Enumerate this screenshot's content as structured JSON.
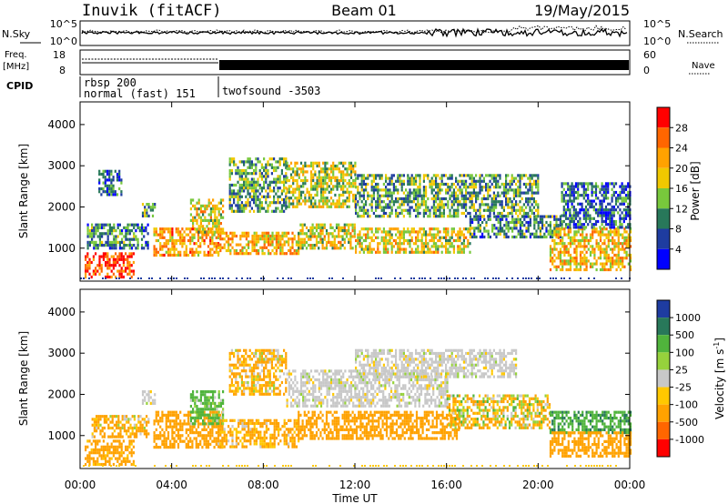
{
  "header": {
    "station": "Inuvik (fitACF)",
    "beam": "Beam 01",
    "date": "19/May/2015"
  },
  "top_panels": {
    "nsky_label": "N.Sky",
    "nsearch_label": "N.Search",
    "freq_label_1": "Freq.",
    "freq_label_2": "[MHz]",
    "nave_label": "Nave",
    "cpid_label": "CPID",
    "nsky_ticks": [
      "10^5",
      "10^0"
    ],
    "nsearch_ticks": [
      "10^5",
      "10^0"
    ],
    "freq_ticks": [
      "18",
      "8"
    ],
    "nave_ticks": [
      "60",
      "0"
    ],
    "cpid_entries": [
      {
        "line1": "rbsp 200",
        "line2": "normal (fast) 151"
      },
      {
        "line1": "twofsound -3503",
        "line2": ""
      }
    ]
  },
  "colorbars": {
    "power": {
      "label": "Power [dB]",
      "ticks": [
        "28",
        "24",
        "20",
        "16",
        "12",
        "8",
        "4"
      ],
      "colors": [
        "#ff0000",
        "#ff6600",
        "#ffa200",
        "#f0c800",
        "#78c83c",
        "#28785a",
        "#1e3ca0",
        "#0000ff"
      ]
    },
    "velocity": {
      "label": "Velocity [m s",
      "label_sup": "-1",
      "label_end": "]",
      "ticks": [
        "1000",
        "500",
        "100",
        "25",
        "-25",
        "-100",
        "-500",
        "-1000"
      ],
      "colors": [
        "#1e3ca0",
        "#28785a",
        "#50b43c",
        "#96d23c",
        "#c8c8c8",
        "#ffc800",
        "#ffa200",
        "#ff6600",
        "#ff0000"
      ]
    }
  },
  "chart_data": [
    {
      "type": "heatmap",
      "parameter": "Power",
      "ylabel": "Slant Range [km]",
      "yticks": [
        "4000",
        "3000",
        "2000",
        "1000"
      ],
      "ylim": [
        200,
        4550
      ],
      "xlim": [
        0,
        24
      ],
      "echo_bands": [
        {
          "t0": 0.2,
          "t1": 2.3,
          "r0": 300,
          "r1": 900,
          "power_dB": 28
        },
        {
          "t0": 0.3,
          "t1": 3.0,
          "r0": 1000,
          "r1": 1600,
          "power_dB": 10
        },
        {
          "t0": 0.8,
          "t1": 1.8,
          "r0": 2300,
          "r1": 2900,
          "power_dB": 8
        },
        {
          "t0": 2.7,
          "t1": 3.3,
          "r0": 1800,
          "r1": 2100,
          "power_dB": 12
        },
        {
          "t0": 3.2,
          "t1": 6.0,
          "r0": 800,
          "r1": 1500,
          "power_dB": 22
        },
        {
          "t0": 4.8,
          "t1": 6.2,
          "r0": 1400,
          "r1": 2200,
          "power_dB": 18
        },
        {
          "t0": 6.0,
          "t1": 9.5,
          "r0": 900,
          "r1": 1400,
          "power_dB": 20
        },
        {
          "t0": 6.5,
          "t1": 9.0,
          "r0": 1900,
          "r1": 3200,
          "power_dB": 12
        },
        {
          "t0": 9.0,
          "t1": 12.0,
          "r0": 2000,
          "r1": 3100,
          "power_dB": 16
        },
        {
          "t0": 9.5,
          "t1": 12.0,
          "r0": 1000,
          "r1": 1600,
          "power_dB": 18
        },
        {
          "t0": 12.0,
          "t1": 17.0,
          "r0": 900,
          "r1": 1500,
          "power_dB": 18
        },
        {
          "t0": 12.0,
          "t1": 20.0,
          "r0": 1800,
          "r1": 2800,
          "power_dB": 12
        },
        {
          "t0": 17.0,
          "t1": 21.0,
          "r0": 1300,
          "r1": 1800,
          "power_dB": 10
        },
        {
          "t0": 20.5,
          "t1": 24.0,
          "r0": 500,
          "r1": 1500,
          "power_dB": 20
        },
        {
          "t0": 21.0,
          "t1": 24.0,
          "r0": 1500,
          "r1": 2600,
          "power_dB": 8
        }
      ]
    },
    {
      "type": "heatmap",
      "parameter": "Velocity",
      "ylabel": "Slant Range [km]",
      "yticks": [
        "4000",
        "3000",
        "2000",
        "1000"
      ],
      "ylim": [
        200,
        4550
      ],
      "xlim": [
        0,
        24
      ],
      "xticks": [
        "00:00",
        "04:00",
        "08:00",
        "12:00",
        "16:00",
        "20:00",
        "00:00"
      ],
      "xlabel": "Time UT",
      "echo_bands": [
        {
          "t0": 0.2,
          "t1": 2.3,
          "r0": 300,
          "r1": 900,
          "velocity": -250
        },
        {
          "t0": 0.5,
          "t1": 3.0,
          "r0": 1000,
          "r1": 1500,
          "velocity": -150
        },
        {
          "t0": 2.7,
          "t1": 3.3,
          "r0": 1800,
          "r1": 2100,
          "velocity": 0
        },
        {
          "t0": 3.2,
          "t1": 6.2,
          "r0": 700,
          "r1": 1600,
          "velocity": -300
        },
        {
          "t0": 4.8,
          "t1": 6.2,
          "r0": 1300,
          "r1": 2100,
          "velocity": 200
        },
        {
          "t0": 6.0,
          "t1": 9.5,
          "r0": 700,
          "r1": 1400,
          "velocity": -200
        },
        {
          "t0": 6.5,
          "t1": 9.0,
          "r0": 2000,
          "r1": 3100,
          "velocity": -150
        },
        {
          "t0": 9.0,
          "t1": 16.0,
          "r0": 1700,
          "r1": 2600,
          "velocity": 0
        },
        {
          "t0": 9.5,
          "t1": 16.5,
          "r0": 900,
          "r1": 1600,
          "velocity": -300
        },
        {
          "t0": 12.0,
          "t1": 19.0,
          "r0": 2400,
          "r1": 3100,
          "velocity": 0
        },
        {
          "t0": 16.0,
          "t1": 20.5,
          "r0": 1200,
          "r1": 2000,
          "velocity": -60
        },
        {
          "t0": 20.5,
          "t1": 24.0,
          "r0": 1100,
          "r1": 1600,
          "velocity": 400
        },
        {
          "t0": 20.5,
          "t1": 24.0,
          "r0": 500,
          "r1": 1100,
          "velocity": -300
        }
      ]
    }
  ]
}
